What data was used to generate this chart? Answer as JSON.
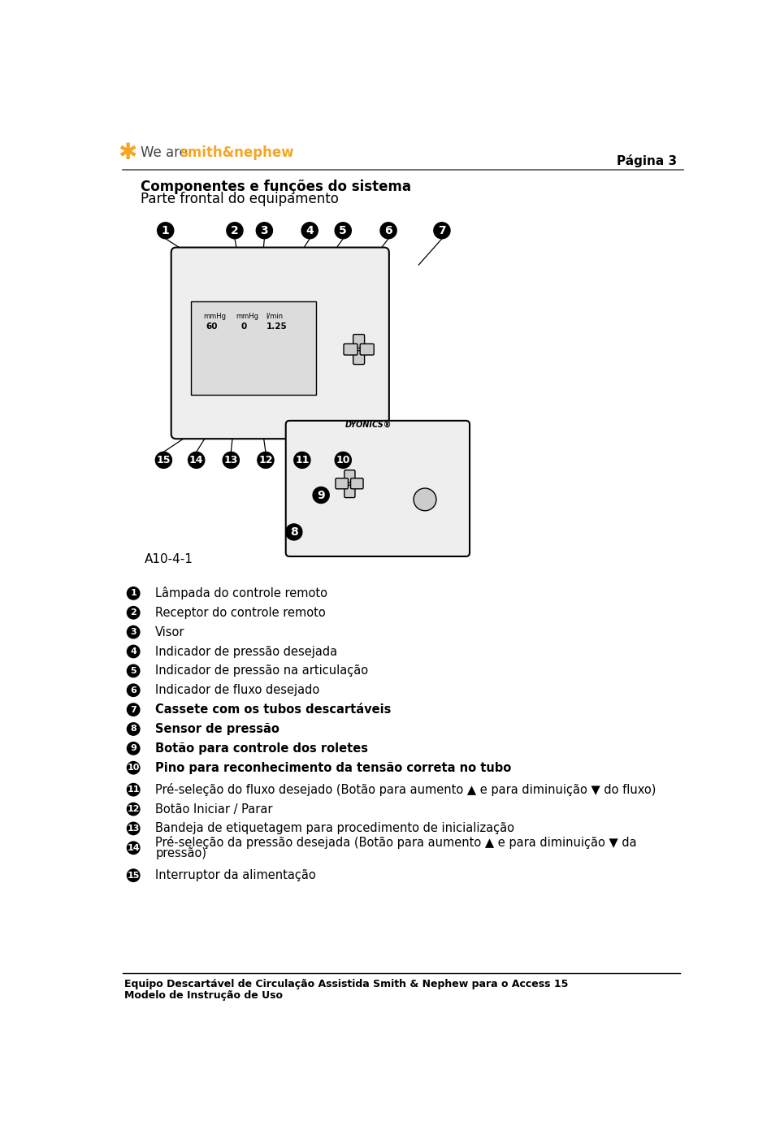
{
  "page_number": "Página 3",
  "title_line1": "Componentes e funções do sistema",
  "title_line2": "Parte frontal do equipamento",
  "diagram_label": "A10-4-1",
  "items_1_10": [
    {
      "num_str": "1",
      "bold": false,
      "text": "Lâmpada do controle remoto"
    },
    {
      "num_str": "2",
      "bold": false,
      "text": "Receptor do controle remoto"
    },
    {
      "num_str": "3",
      "bold": false,
      "text": "Visor"
    },
    {
      "num_str": "4",
      "bold": false,
      "text": "Indicador de pressão desejada"
    },
    {
      "num_str": "5",
      "bold": false,
      "text": "Indicador de pressão na articulação"
    },
    {
      "num_str": "6",
      "bold": false,
      "text": "Indicador de fluxo desejado"
    },
    {
      "num_str": "7",
      "bold": true,
      "text": "Cassete com os tubos descartáveis"
    },
    {
      "num_str": "8",
      "bold": true,
      "text": "Sensor de pressão"
    },
    {
      "num_str": "9",
      "bold": true,
      "text": "Botão para controle dos roletes"
    },
    {
      "num_str": "10",
      "bold": true,
      "text": "Pino para reconhecimento da tensão correta no tubo"
    }
  ],
  "items_11_15": [
    {
      "num_str": "11",
      "bold": false,
      "text": "Pré-seleção do fluxo desejado (Botão para aumento ▲ e para diminuição ▼ do fluxo)",
      "wrap": false
    },
    {
      "num_str": "12",
      "bold": false,
      "text": "Botão Iniciar / Parar",
      "wrap": false
    },
    {
      "num_str": "13",
      "bold": false,
      "text": "Bandeja de etiquetagem para procedimento de inicialização",
      "wrap": false
    },
    {
      "num_str": "14",
      "bold": false,
      "text_line1": "Pré-seleção da pressão desejada (Botão para aumento ▲ e para diminuição ▼ da",
      "text_line2": "pressão)",
      "wrap": true
    },
    {
      "num_str": "15",
      "bold": false,
      "text": "Interruptor da alimentação",
      "wrap": false
    }
  ],
  "footer_line1": "Equipo Descartável de Circulação Assistida Smith & Nephew para o Access 15",
  "footer_line2": "Modelo de Instrução de Uso",
  "bg_color": "#ffffff",
  "text_color": "#000000",
  "orange_color": "#f5a623",
  "header_line_color": "#555555"
}
